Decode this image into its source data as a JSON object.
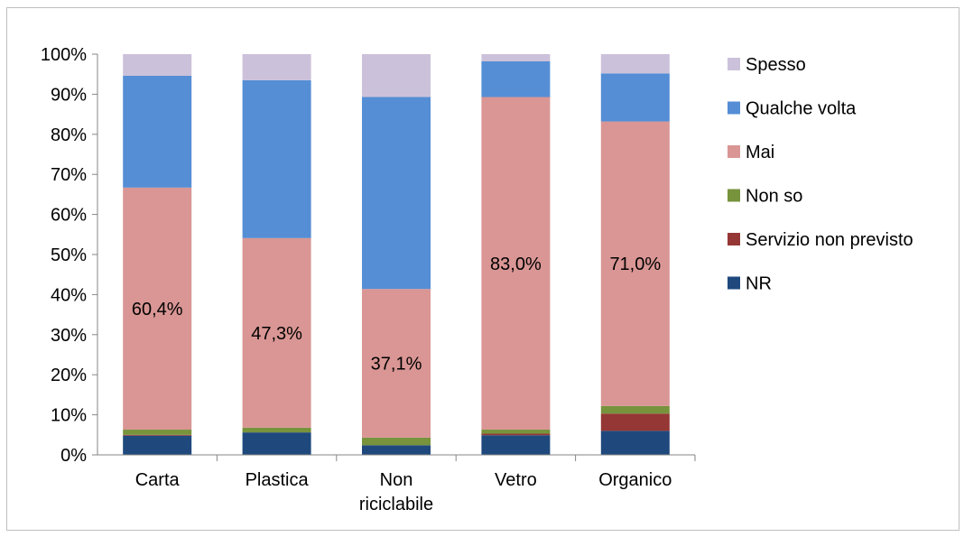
{
  "chart_data": {
    "type": "bar",
    "stacked": true,
    "percent_stacked": true,
    "categories": [
      "Carta",
      "Plastica",
      "Non riciclabile",
      "Vetro",
      "Organico"
    ],
    "category_lines": [
      [
        "Carta"
      ],
      [
        "Plastica"
      ],
      [
        "Non",
        "riciclabile"
      ],
      [
        "Vetro"
      ],
      [
        "Organico"
      ]
    ],
    "series": [
      {
        "name": "NR",
        "color": "#1f497d",
        "values": [
          4.8,
          5.6,
          2.4,
          4.9,
          6.0
        ]
      },
      {
        "name": "Servizio non previsto",
        "color": "#953735",
        "values": [
          0.2,
          0.0,
          0.0,
          0.4,
          4.3
        ]
      },
      {
        "name": "Non so",
        "color": "#77933c",
        "values": [
          1.3,
          1.2,
          1.9,
          1.0,
          1.9
        ]
      },
      {
        "name": "Mai",
        "color": "#d99694",
        "values": [
          60.4,
          47.3,
          37.1,
          83.0,
          71.0
        ]
      },
      {
        "name": "Qualche volta",
        "color": "#558ed5",
        "values": [
          27.9,
          39.4,
          47.9,
          8.9,
          12.0
        ]
      },
      {
        "name": "Spesso",
        "color": "#ccc1da",
        "values": [
          5.4,
          6.5,
          10.7,
          1.8,
          4.8
        ]
      }
    ],
    "data_labels": [
      "60,4%",
      "47,3%",
      "37,1%",
      "83,0%",
      "71,0%"
    ],
    "data_label_series": "Mai",
    "yticks": [
      "0%",
      "10%",
      "20%",
      "30%",
      "40%",
      "50%",
      "60%",
      "70%",
      "80%",
      "90%",
      "100%"
    ],
    "ylim": [
      0,
      100
    ],
    "grid": false,
    "legend_position": "right",
    "legend_order": [
      "Spesso",
      "Qualche volta",
      "Mai",
      "Non so",
      "Servizio non previsto",
      "NR"
    ]
  }
}
